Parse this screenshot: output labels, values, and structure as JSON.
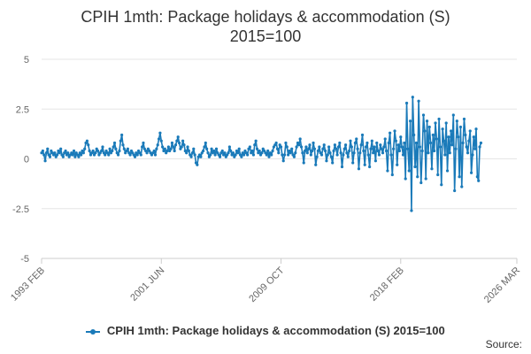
{
  "chart_data": {
    "type": "line",
    "title": "CPIH 1mth: Package holidays & accommodation (S)",
    "subtitle": "2015=100",
    "xlabel": "",
    "ylabel": "",
    "ylim": [
      -5,
      5
    ],
    "y_ticks": [
      "5",
      "2.5",
      "0",
      "-2.5",
      "-5"
    ],
    "y_tick_values": [
      5,
      2.5,
      0,
      -2.5,
      -5
    ],
    "x_tick_labels": [
      "1993 FEB",
      "2001 JUN",
      "2009 OCT",
      "2018 FEB",
      "2026 MAR"
    ],
    "x_tick_values": [
      1993.083,
      2001.417,
      2009.75,
      2018.083,
      2026.167
    ],
    "x_range": [
      1993.083,
      2026.167
    ],
    "grid": true,
    "legend_position": "bottom",
    "series": [
      {
        "name": "CPIH 1mth: Package holidays & accommodation (S) 2015=100",
        "color": "#1a7ab9",
        "start": [
          1993,
          2
        ],
        "frequency": "monthly",
        "values": [
          0.3,
          0.4,
          0.2,
          -0.1,
          0.3,
          0.5,
          0.2,
          0.1,
          0.4,
          0.3,
          0.2,
          0.3,
          0.1,
          0.2,
          0.4,
          0.3,
          0.5,
          0.2,
          0.1,
          0.3,
          0.4,
          0.2,
          0.3,
          0.1,
          0.2,
          0.3,
          0.2,
          0.4,
          0.1,
          0.3,
          0.2,
          0.1,
          0.3,
          0.2,
          0.4,
          0.3,
          0.5,
          0.8,
          0.9,
          0.7,
          0.4,
          0.2,
          0.3,
          0.4,
          0.2,
          0.3,
          0.5,
          0.4,
          0.2,
          0.3,
          0.4,
          0.6,
          0.3,
          0.2,
          0.4,
          0.3,
          0.2,
          0.5,
          0.3,
          0.4,
          0.6,
          0.8,
          0.5,
          0.3,
          0.2,
          0.4,
          0.9,
          1.2,
          0.7,
          0.5,
          0.3,
          0.4,
          0.5,
          0.3,
          0.2,
          0.4,
          0.3,
          0.2,
          0.1,
          0.3,
          0.2,
          0.4,
          0.3,
          0.2,
          0.6,
          0.8,
          0.5,
          0.4,
          0.3,
          0.5,
          0.4,
          0.3,
          0.2,
          0.3,
          0.4,
          0.2,
          0.5,
          0.7,
          1.0,
          1.3,
          0.9,
          0.6,
          0.4,
          0.5,
          0.3,
          0.4,
          0.6,
          0.4,
          0.5,
          0.8,
          0.6,
          0.4,
          0.7,
          0.9,
          1.1,
          0.8,
          0.5,
          0.6,
          0.9,
          0.7,
          0.4,
          0.3,
          0.6,
          0.4,
          0.2,
          0.1,
          0.3,
          0.5,
          0.2,
          -0.2,
          -0.3,
          0.1,
          0.2,
          0.1,
          0.3,
          0.4,
          0.6,
          0.8,
          0.5,
          0.3,
          0.1,
          0.2,
          0.5,
          0.3,
          0.4,
          0.2,
          0.5,
          0.3,
          0.2,
          0.1,
          0.3,
          0.4,
          0.2,
          0.3,
          0.1,
          0.2,
          0.3,
          0.6,
          0.4,
          0.2,
          0.3,
          0.1,
          0.2,
          0.4,
          0.3,
          0.5,
          0.2,
          0.1,
          0.3,
          0.2,
          0.4,
          0.3,
          0.2,
          0.5,
          0.6,
          0.3,
          0.4,
          0.2,
          0.7,
          0.9,
          0.5,
          0.3,
          0.4,
          0.2,
          0.3,
          0.5,
          0.4,
          0.3,
          0.2,
          0.4,
          0.1,
          0.3,
          0.2,
          0.4,
          0.6,
          0.7,
          0.8,
          0.5,
          0.3,
          0.7,
          0.6,
          0.2,
          -0.1,
          0.2,
          0.8,
          0.6,
          0.2,
          0.4,
          0.3,
          0.5,
          0.2,
          0.1,
          0.3,
          0.6,
          0.8,
          0.7,
          1.0,
          0.6,
          0.3,
          -0.2,
          0.4,
          0.6,
          0.3,
          0.5,
          0.7,
          0.2,
          0.4,
          0.8,
          0.5,
          -0.3,
          0.1,
          0.4,
          0.6,
          0.3,
          0.2,
          0.5,
          0.7,
          0.4,
          -0.1,
          0.2,
          0.6,
          0.3,
          0.1,
          -0.2,
          0.4,
          0.7,
          0.5,
          0.2,
          0.6,
          0.8,
          0.3,
          -0.4,
          0.2,
          0.5,
          0.7,
          0.3,
          0.1,
          0.4,
          0.9,
          0.6,
          -0.2,
          0.3,
          0.8,
          1.0,
          0.5,
          -0.5,
          0.3,
          0.7,
          1.2,
          0.4,
          -0.3,
          0.6,
          0.8,
          0.2,
          -0.4,
          0.5,
          0.9,
          0.3,
          0.6,
          -0.1,
          0.8,
          0.4,
          0.2,
          0.7,
          0.5,
          0.3,
          0.6,
          1.0,
          0.4,
          -0.6,
          0.8,
          1.3,
          0.2,
          -0.8,
          0.5,
          1.4,
          0.9,
          -0.3,
          0.7,
          0.4,
          1.1,
          0.6,
          0.2,
          0.8,
          -1.0,
          2.8,
          0.5,
          -0.6,
          1.9,
          -2.6,
          3.1,
          1.2,
          -0.4,
          0.8,
          -0.9,
          2.9,
          0.6,
          -1.2,
          0.4,
          2.2,
          1.4,
          -1.0,
          1.9,
          0.3,
          1.6,
          0.8,
          -0.5,
          1.2,
          0.4,
          1.8,
          1.0,
          -0.8,
          2.0,
          0.6,
          -1.3,
          1.5,
          0.9,
          0.2,
          1.8,
          -0.6,
          1.1,
          0.3,
          1.4,
          0.7,
          2.2,
          -1.6,
          0.5,
          1.9,
          1.1,
          -0.9,
          1.6,
          -1.4,
          0.8,
          2.0,
          1.2,
          0.6,
          0.3,
          0.9,
          1.4,
          -0.7,
          0.2,
          1.1,
          0.5,
          1.5,
          -0.9,
          -1.1,
          0.6,
          0.8
        ]
      }
    ]
  },
  "legend": {
    "label": "CPIH 1mth: Package holidays & accommodation (S) 2015=100"
  },
  "footer": {
    "source": "Source:"
  }
}
